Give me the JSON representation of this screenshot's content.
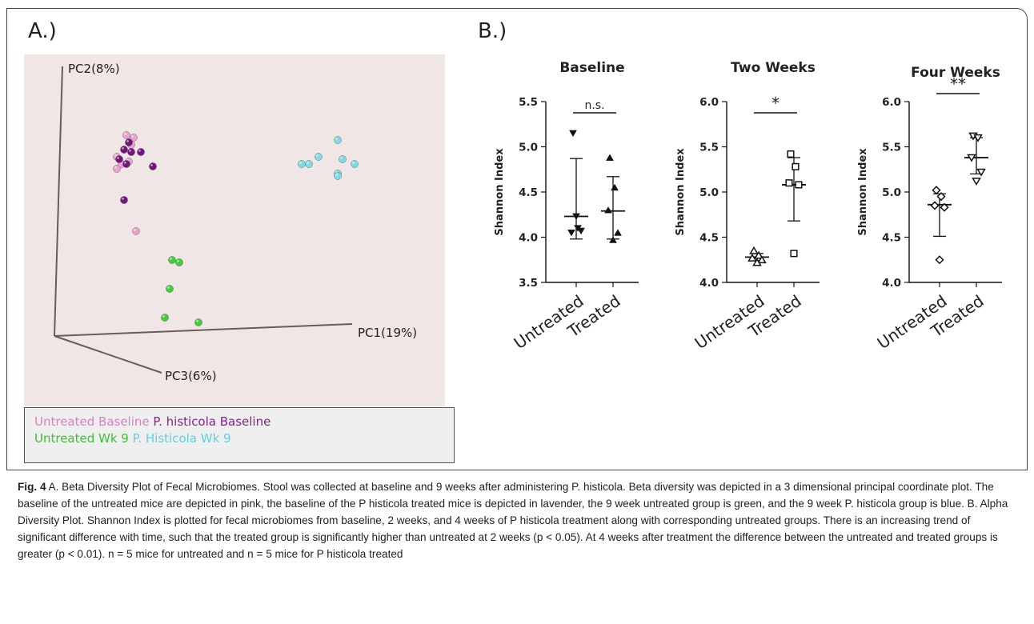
{
  "panel_a": {
    "label": "A.)",
    "axis_labels": {
      "pc1": "PC1(19%)",
      "pc2": "PC2(8%)",
      "pc3": "PC3(6%)"
    },
    "legend": {
      "untreated_baseline": "Untreated Baseline",
      "p_histicola_baseline": "P. histicola Baseline",
      "untreated_wk9": "Untreated Wk 9",
      "p_histicola_wk9": "P. Histicola Wk 9"
    }
  },
  "panel_b": {
    "label": "B.)",
    "ylabel": "Shannon Index",
    "xlabels": [
      "Untreated",
      "Treated"
    ]
  },
  "colors": {
    "untreated_baseline": "#e6a3cf",
    "p_histicola_baseline": "#74157a",
    "untreated_wk9": "#44cc3a",
    "p_histicola_wk9": "#7fd9e6",
    "plot_background": "#f1e6e6",
    "legend_untreated_baseline_text": "#e879c8",
    "legend_p_histicola_baseline_text": "#8a1f8a",
    "legend_untreated_wk9_text": "#3fc037",
    "legend_p_histicola_wk9_text": "#5fd0e0"
  },
  "chart_data": [
    {
      "type": "scatter",
      "title": "",
      "xlabel": "PC1(19%)",
      "ylabel": "PC2(8%)",
      "zlabel": "PC3(6%)",
      "series": [
        {
          "name": "Untreated Baseline",
          "points": [
            [
              -0.38,
              0.29
            ],
            [
              -0.35,
              0.28
            ],
            [
              -0.42,
              0.2
            ],
            [
              -0.4,
              0.17
            ],
            [
              -0.37,
              0.18
            ],
            [
              -0.42,
              0.15
            ],
            [
              -0.34,
              -0.11
            ],
            [
              -0.36,
              0.25
            ]
          ]
        },
        {
          "name": "P. histicola Baseline",
          "points": [
            [
              -0.37,
              0.26
            ],
            [
              -0.39,
              0.23
            ],
            [
              -0.36,
              0.22
            ],
            [
              -0.32,
              0.22
            ],
            [
              -0.41,
              0.19
            ],
            [
              -0.38,
              0.17
            ],
            [
              -0.27,
              0.16
            ],
            [
              -0.39,
              0.02
            ]
          ]
        },
        {
          "name": "Untreated Wk 9",
          "points": [
            [
              -0.19,
              -0.23
            ],
            [
              -0.16,
              -0.24
            ],
            [
              -0.2,
              -0.35
            ],
            [
              -0.22,
              -0.47
            ],
            [
              -0.08,
              -0.49
            ]
          ]
        },
        {
          "name": "P. Histicola Wk 9",
          "points": [
            [
              0.35,
              0.17
            ],
            [
              0.38,
              0.17
            ],
            [
              0.42,
              0.2
            ],
            [
              0.5,
              0.27
            ],
            [
              0.52,
              0.19
            ],
            [
              0.5,
              0.13
            ],
            [
              0.5,
              0.12
            ],
            [
              0.57,
              0.17
            ]
          ]
        }
      ]
    },
    {
      "type": "scatter",
      "title": "Baseline",
      "xlabel": "",
      "ylabel": "Shannon Index",
      "categories": [
        "Untreated",
        "Treated"
      ],
      "ylim": [
        3.5,
        5.5
      ],
      "yticks": [
        "3.5",
        "4.0",
        "4.5",
        "5.0",
        "5.5"
      ],
      "significance": "n.s.",
      "series": [
        {
          "name": "Untreated",
          "values": [
            5.15,
            4.1,
            4.05,
            4.07,
            4.23
          ],
          "mean": 4.23,
          "sd_low": 3.98,
          "sd_high": 4.87
        },
        {
          "name": "Treated",
          "values": [
            4.88,
            4.55,
            4.3,
            4.05,
            3.97
          ],
          "mean": 4.29,
          "sd_low": 3.98,
          "sd_high": 4.67
        }
      ]
    },
    {
      "type": "scatter",
      "title": "Two Weeks",
      "xlabel": "",
      "ylabel": "Shannon Index",
      "categories": [
        "Untreated",
        "Treated"
      ],
      "ylim": [
        4.0,
        6.0
      ],
      "yticks": [
        "4.0",
        "4.5",
        "5.0",
        "5.5",
        "6.0"
      ],
      "significance": "*",
      "series": [
        {
          "name": "Untreated",
          "values": [
            4.35,
            4.3,
            4.27,
            4.25,
            4.22
          ],
          "mean": 4.28,
          "sd_low": 4.24,
          "sd_high": 4.32
        },
        {
          "name": "Treated",
          "values": [
            5.42,
            5.28,
            5.1,
            5.08,
            4.32
          ],
          "mean": 5.08,
          "sd_low": 4.68,
          "sd_high": 5.38
        }
      ]
    },
    {
      "type": "scatter",
      "title": "Four Weeks",
      "xlabel": "",
      "ylabel": "Shannon Index",
      "categories": [
        "Untreated",
        "Treated"
      ],
      "ylim": [
        4.0,
        6.0
      ],
      "yticks": [
        "4.0",
        "4.5",
        "5.0",
        "5.5",
        "6.0"
      ],
      "significance": "**",
      "series": [
        {
          "name": "Untreated",
          "values": [
            5.02,
            4.95,
            4.85,
            4.83,
            4.25
          ],
          "mean": 4.86,
          "sd_low": 4.51,
          "sd_high": 4.98
        },
        {
          "name": "Treated",
          "values": [
            5.62,
            5.6,
            5.38,
            5.22,
            5.12
          ],
          "mean": 5.38,
          "sd_low": 5.2,
          "sd_high": 5.6
        }
      ]
    }
  ],
  "caption": {
    "fig_label": "Fig. 4",
    "text": "A. Beta Diversity Plot of Fecal Microbiomes. Stool was collected at baseline and 9 weeks after administering P. histicola. Beta diversity was depicted in a 3 dimensional principal coordinate plot. The baseline of the untreated mice are depicted in pink, the baseline of the P histicola treated mice is depicted in lavender, the 9 week untreated group is green, and the 9 week P. histicola group is blue. B. Alpha Diversity Plot. Shannon Index is plotted for fecal microbiomes from baseline, 2 weeks, and 4 weeks of P histicola treatment along with corresponding untreated groups. There is an increasing trend of significant difference with time, such that the treated group is significantly higher than untreated at 2 weeks (p < 0.05). At 4 weeks after treatment the difference between the untreated and treated groups is greater (p < 0.01). n = 5 mice for untreated and n = 5 mice for P histicola treated"
  }
}
